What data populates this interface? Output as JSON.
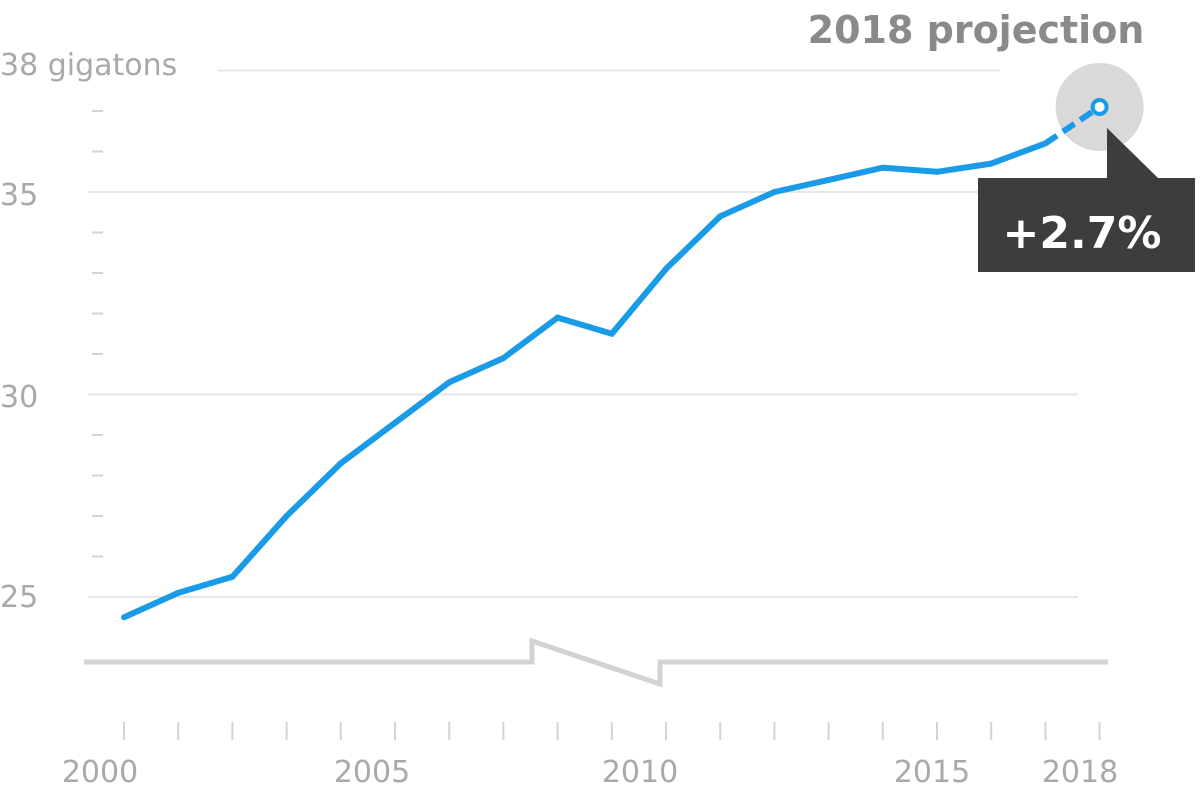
{
  "chart_data": {
    "type": "line",
    "title": "",
    "xlabel": "",
    "ylabel": "",
    "y_unit": "gigatons",
    "ylim": [
      25,
      38
    ],
    "xlim": [
      2000,
      2018
    ],
    "y_ticks": [
      25,
      30,
      35,
      38
    ],
    "y_tick_labels": [
      "25",
      "30",
      "35",
      "38 gigatons"
    ],
    "x_ticks": [
      2000,
      2005,
      2010,
      2015,
      2018
    ],
    "x_tick_labels": [
      "2000",
      "2005",
      "2010",
      "2015",
      "2018"
    ],
    "axis_break": true,
    "grid": true,
    "series": [
      {
        "x": [
          2000,
          2001,
          2002,
          2003,
          2004,
          2005,
          2006,
          2007,
          2008,
          2009,
          2010,
          2011,
          2012,
          2013,
          2014,
          2015,
          2016,
          2017
        ],
        "values": [
          24.5,
          25.1,
          25.5,
          27.0,
          28.3,
          29.3,
          30.3,
          30.9,
          31.9,
          31.5,
          33.1,
          34.4,
          35.0,
          35.3,
          35.6,
          35.5,
          35.7,
          36.2
        ],
        "style": "solid"
      },
      {
        "x": [
          2017,
          2018
        ],
        "values": [
          36.2,
          37.1
        ],
        "style": "dashed",
        "projection": true
      }
    ],
    "annotations": {
      "projection_label": "2018 projection",
      "change_label": "+2.7%"
    },
    "colors": {
      "line": "#1a9be8",
      "grid": "#e6e6e6",
      "tick_text": "#a9a9a9",
      "projection_title": "#8a8a8a",
      "callout_bg": "#3d3d3d",
      "callout_text": "#ffffff",
      "halo": "#d9d9d9",
      "axis": "#d3d3d3"
    }
  }
}
